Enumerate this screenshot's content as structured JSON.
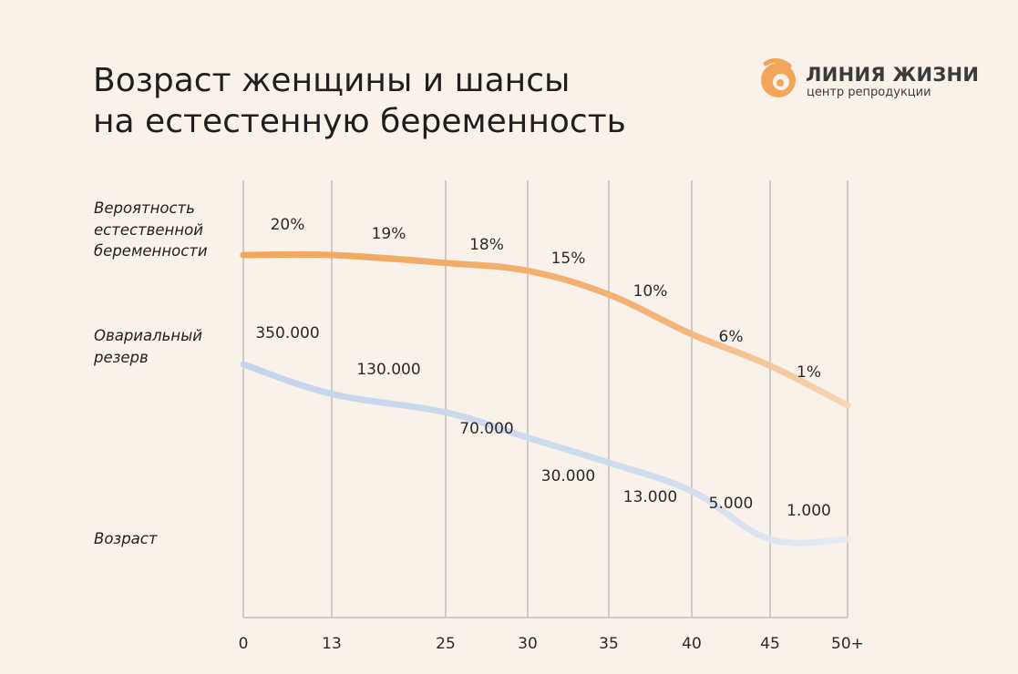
{
  "title_line1": "Возраст женщины и шансы",
  "title_line2": "на естестенную беременность",
  "logo": {
    "name": "ЛИНИЯ ЖИЗНИ",
    "subtitle": "центр репродукции",
    "icon": "logo-mark",
    "color": "#f2a65a"
  },
  "row_labels": {
    "probability": "Вероятность\nестественной\nбеременности",
    "reserve": "Овариальный\nрезерв",
    "age": "Возраст"
  },
  "chart_data": {
    "type": "line",
    "x_categories": [
      "0",
      "13",
      "25",
      "30",
      "35",
      "40",
      "45",
      "50+"
    ],
    "series": [
      {
        "name": "Вероятность естественной беременности",
        "color": "#f2a65a",
        "points": [
          20,
          20,
          19,
          18,
          15,
          10,
          6,
          1
        ],
        "labels": [
          "20%",
          "19%",
          "18%",
          "15%",
          "10%",
          "6%",
          "1%"
        ]
      },
      {
        "name": "Овариальный резерв",
        "color": "#c9d6ec",
        "points": [
          350000,
          130000,
          70000,
          30000,
          13000,
          5000,
          1000,
          1000
        ],
        "labels": [
          "350.000",
          "130.000",
          "70.000",
          "30.000",
          "13.000",
          "5.000",
          "1.000"
        ]
      }
    ],
    "grid": "vertical",
    "legend": "none"
  }
}
